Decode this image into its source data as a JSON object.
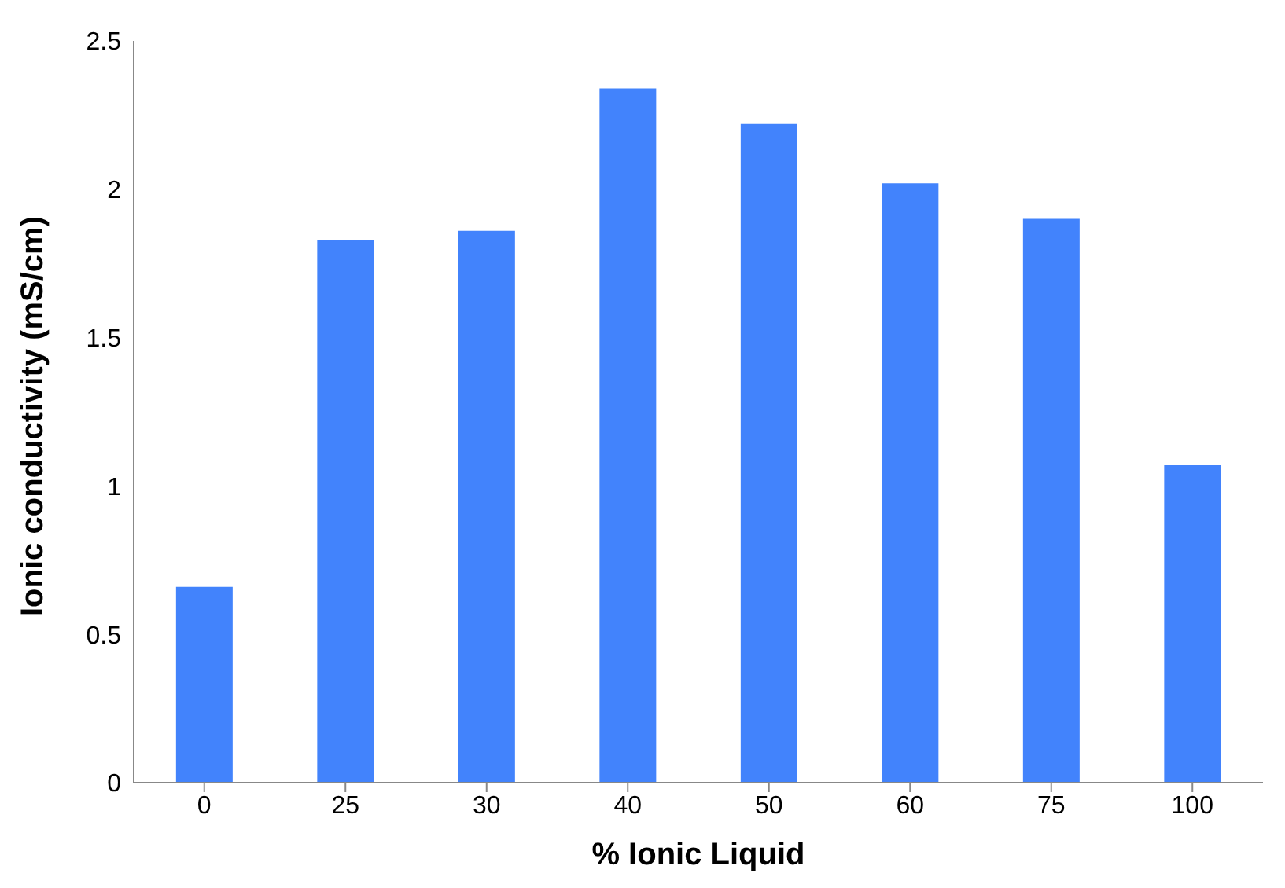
{
  "chart_data": {
    "type": "bar",
    "xlabel": "% Ionic Liquid",
    "ylabel": "Ionic conductivity (mS/cm)",
    "categories": [
      "0",
      "25",
      "30",
      "40",
      "50",
      "60",
      "75",
      "100"
    ],
    "values": [
      0.66,
      1.83,
      1.86,
      2.34,
      2.22,
      2.02,
      1.9,
      1.07
    ],
    "color": "#4283fc",
    "ylim": [
      0,
      2.5
    ],
    "yticks": [
      0,
      0.5,
      1,
      1.5,
      2,
      2.5
    ],
    "grid": false,
    "legend": false
  }
}
